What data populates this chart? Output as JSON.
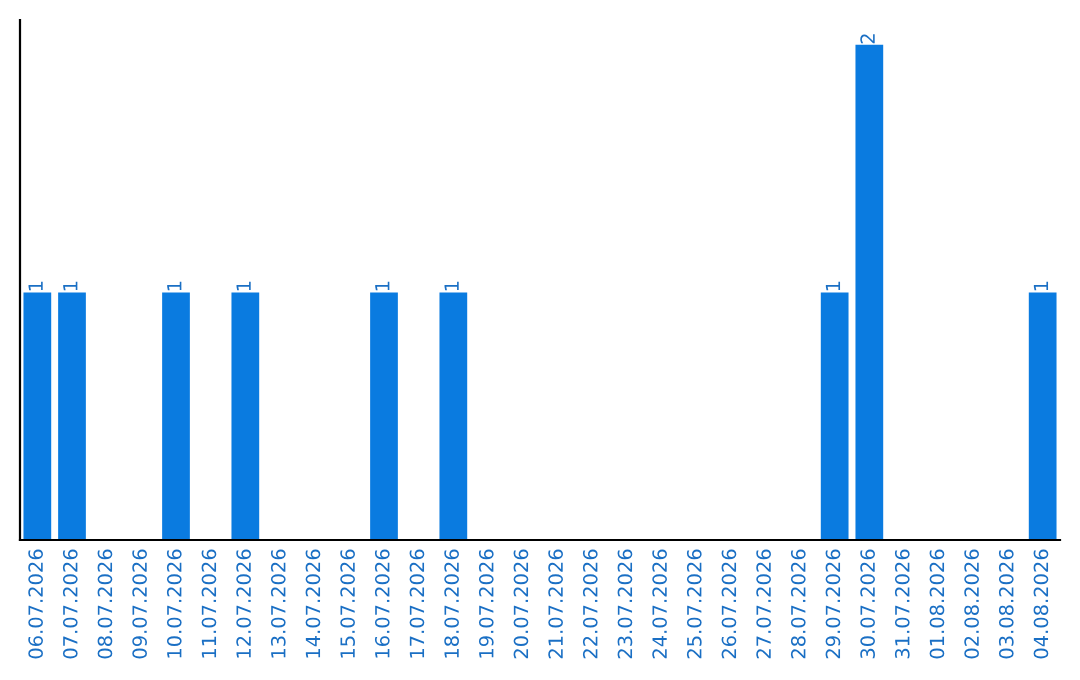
{
  "chart_data": {
    "type": "bar",
    "categories": [
      "06.07.2026",
      "07.07.2026",
      "08.07.2026",
      "09.07.2026",
      "10.07.2026",
      "11.07.2026",
      "12.07.2026",
      "13.07.2026",
      "14.07.2026",
      "15.07.2026",
      "16.07.2026",
      "17.07.2026",
      "18.07.2026",
      "19.07.2026",
      "20.07.2026",
      "21.07.2026",
      "22.07.2026",
      "23.07.2026",
      "24.07.2026",
      "25.07.2026",
      "26.07.2026",
      "27.07.2026",
      "28.07.2026",
      "29.07.2026",
      "30.07.2026",
      "31.07.2026",
      "01.08.2026",
      "02.08.2026",
      "03.08.2026",
      "04.08.2026"
    ],
    "values": [
      1,
      1,
      0,
      0,
      1,
      0,
      1,
      0,
      0,
      0,
      1,
      0,
      1,
      0,
      0,
      0,
      0,
      0,
      0,
      0,
      0,
      0,
      0,
      1,
      2,
      0,
      0,
      0,
      0,
      1
    ],
    "value_labels": [
      "1",
      "1",
      null,
      null,
      "1",
      null,
      "1",
      null,
      null,
      null,
      "1",
      null,
      "1",
      null,
      null,
      null,
      null,
      null,
      null,
      null,
      null,
      null,
      null,
      "1",
      "2",
      null,
      null,
      null,
      null,
      "1"
    ],
    "color": "#0a7be0",
    "grid": false,
    "legend": false
  }
}
